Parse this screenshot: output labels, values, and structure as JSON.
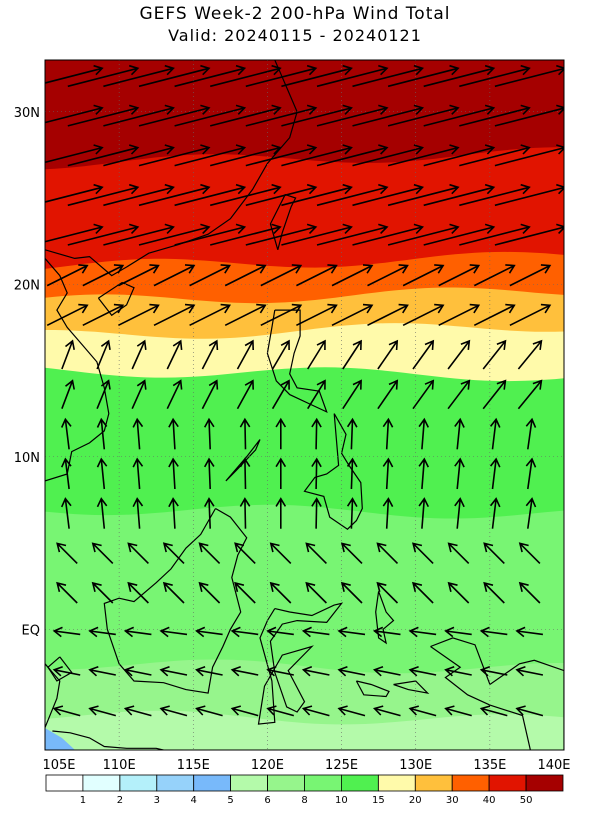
{
  "header": {
    "title": "GEFS Week-2 200-hPa Wind Total",
    "subtitle": "Valid: 20240115 - 20240121"
  },
  "axes": {
    "lat_labels": [
      "30N",
      "20N",
      "10N",
      "EQ"
    ],
    "lat_values": [
      30,
      20,
      10,
      0
    ],
    "lon_labels": [
      "105E",
      "110E",
      "115E",
      "120E",
      "125E",
      "130E",
      "135E",
      "140E"
    ],
    "lon_values": [
      105,
      110,
      115,
      120,
      125,
      130,
      135,
      140
    ],
    "lat_range": [
      -7,
      33
    ],
    "lon_range": [
      105,
      140
    ]
  },
  "colorbar": {
    "labels": [
      "1",
      "2",
      "3",
      "4",
      "5",
      "6",
      "8",
      "10",
      "15",
      "20",
      "30",
      "40",
      "50"
    ],
    "colors": [
      "#ffffff",
      "#e1ffff",
      "#b4f0fa",
      "#96d2fa",
      "#78b9fa",
      "#b4faaa",
      "#96f58c",
      "#78f573",
      "#50f050",
      "#fffaaa",
      "#ffc03c",
      "#ff6000",
      "#e11400",
      "#a50000"
    ]
  },
  "map": {
    "wind_bands": [
      {
        "lat": 33,
        "speed_class": 13
      },
      {
        "lat": 27,
        "speed_class": 12
      },
      {
        "lat": 21,
        "speed_class": 11
      },
      {
        "lat": 19,
        "speed_class": 10
      },
      {
        "lat": 17,
        "speed_class": 9
      },
      {
        "lat": 15,
        "speed_class": 8
      },
      {
        "lat": 7,
        "speed_class": 7
      },
      {
        "lat": -2,
        "speed_class": 6
      },
      {
        "lat": -5,
        "speed_class": 5
      }
    ],
    "grid_style": "dotted",
    "vector_field": "wind direction arrows"
  }
}
